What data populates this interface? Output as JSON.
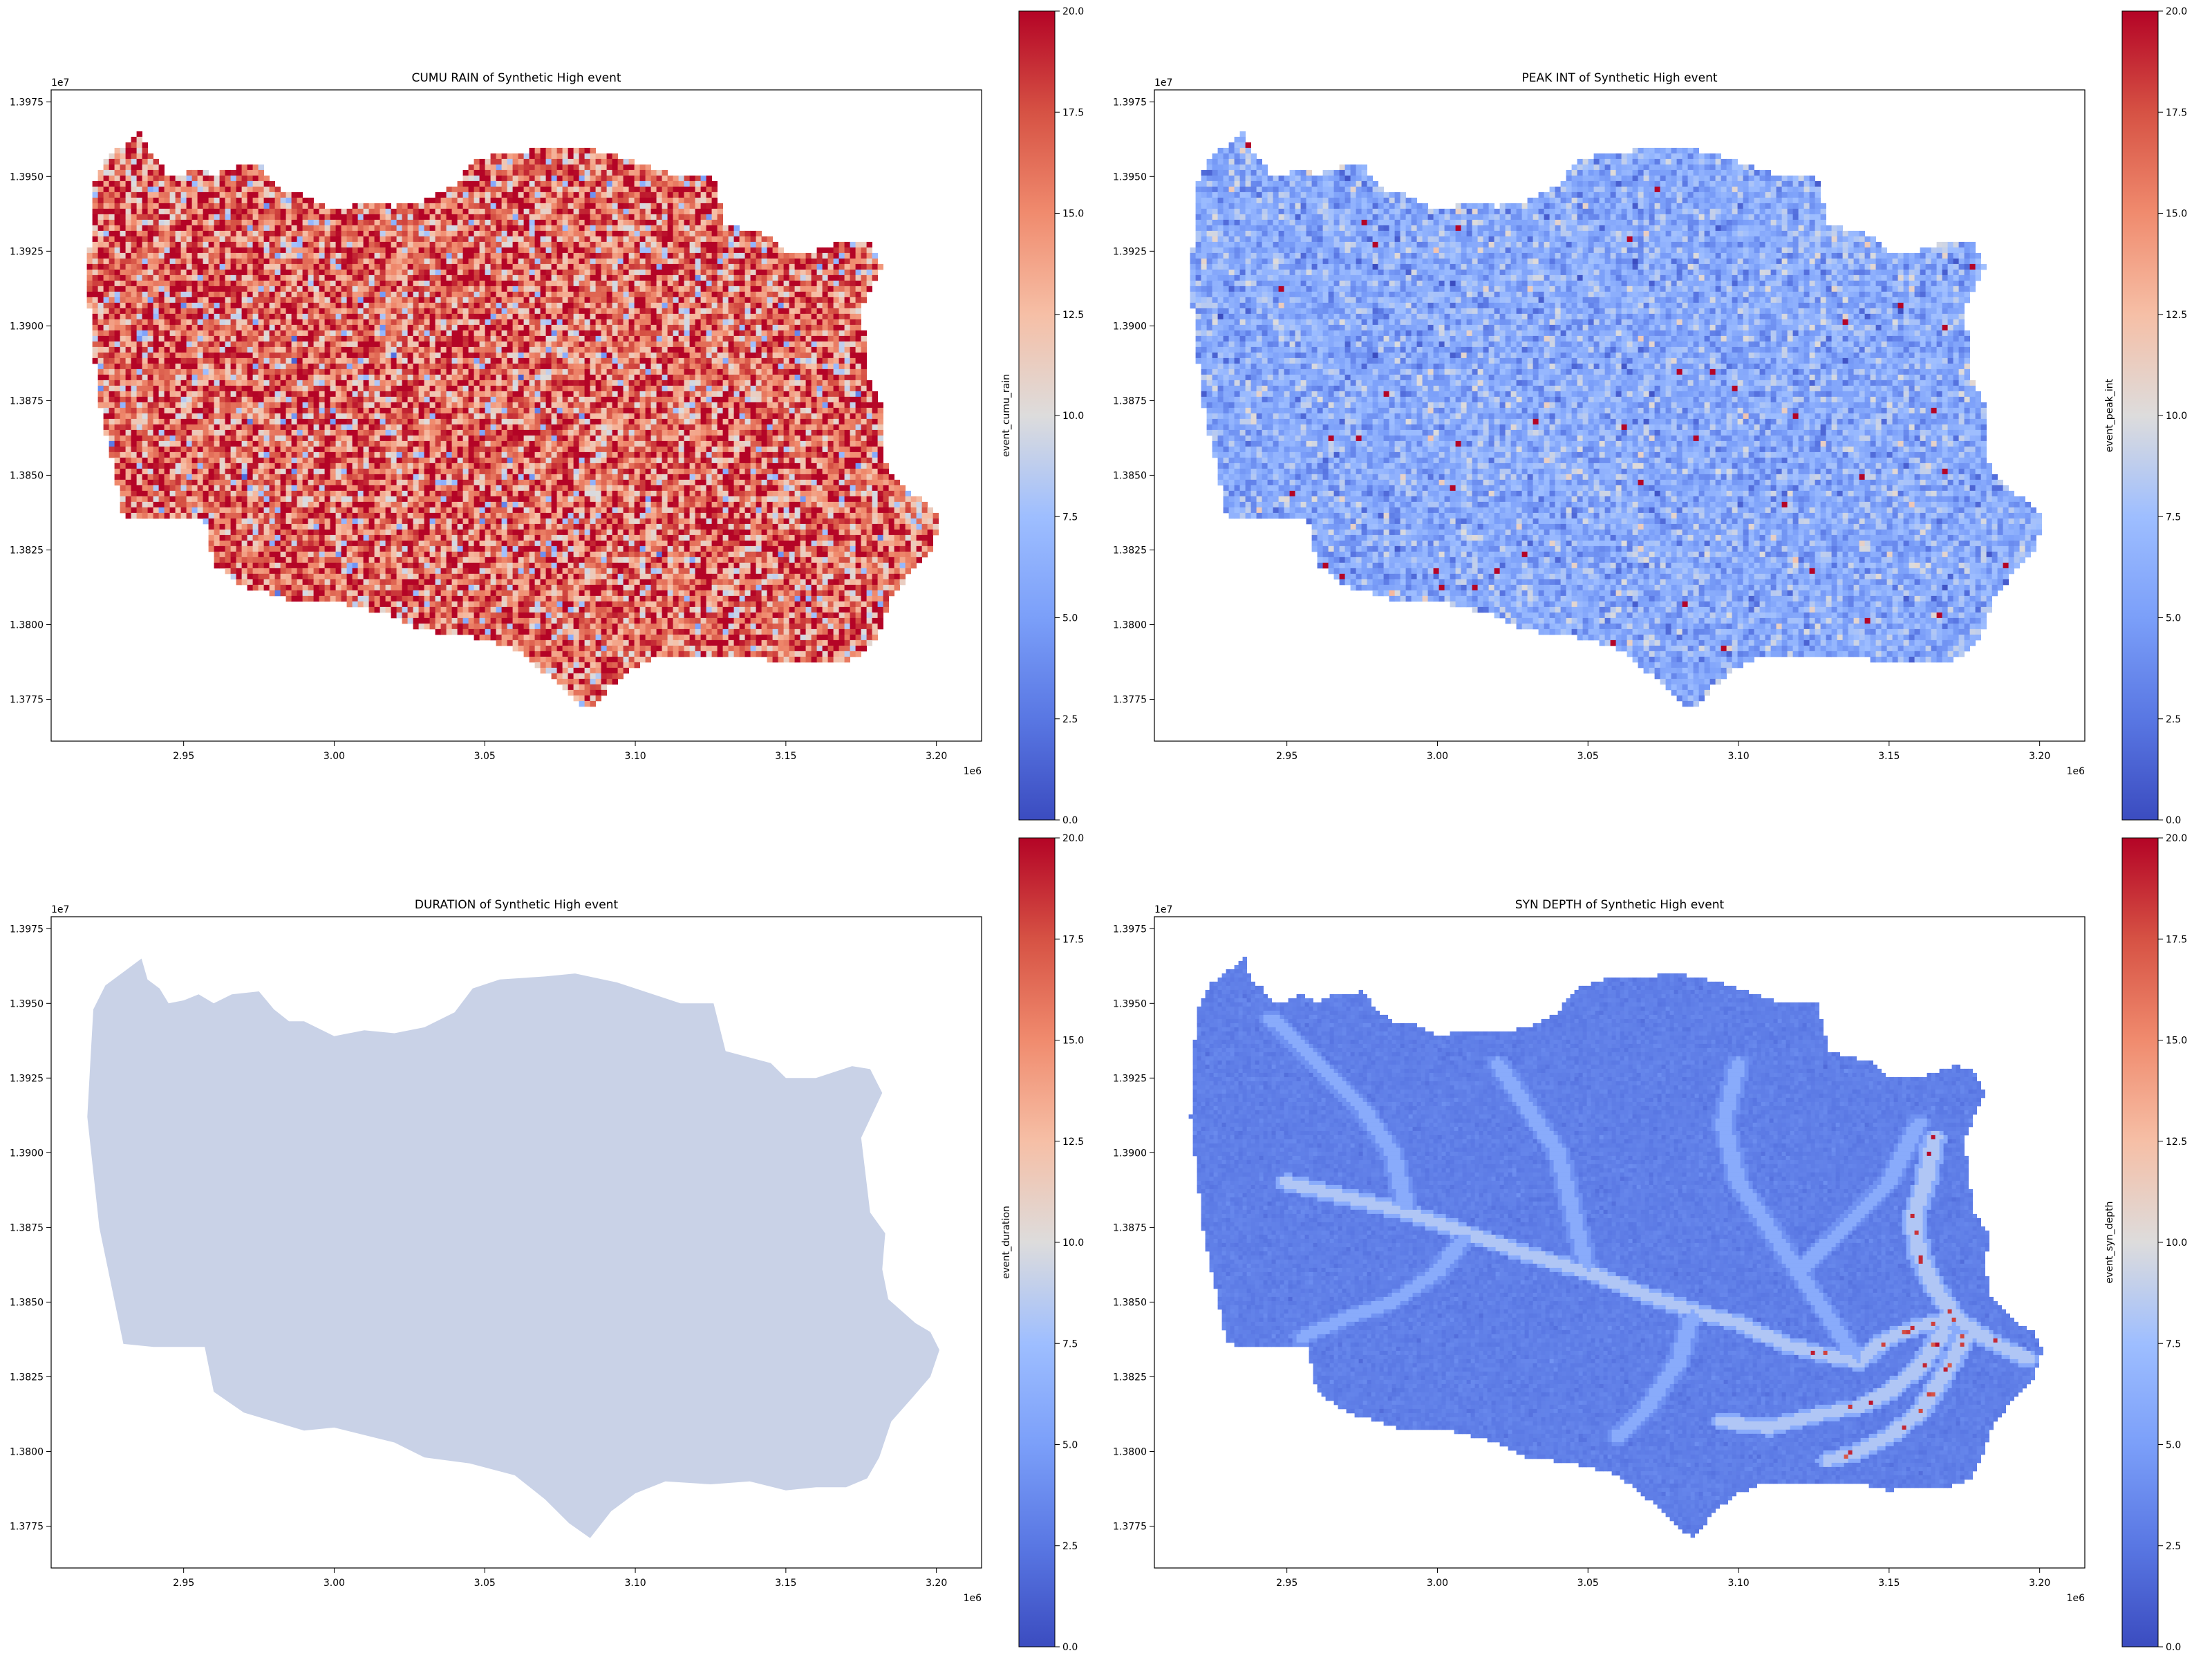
{
  "figure": {
    "background": "#ffffff"
  },
  "colorbar": {
    "ticks": [
      "0.0",
      "2.5",
      "5.0",
      "7.5",
      "10.0",
      "12.5",
      "15.0",
      "17.5",
      "20.0"
    ],
    "vmin": 0,
    "vmax": 20,
    "colormap": "coolwarm"
  },
  "chart_data": [
    {
      "type": "heatmap",
      "title": "CUMU RAIN of Synthetic High event",
      "colorbar_label": "event_cumu_rain",
      "x_offset_label": "1e6",
      "y_offset_label": "1e7",
      "xticks": [
        "2.95",
        "3.00",
        "3.05",
        "3.10",
        "3.15",
        "3.20"
      ],
      "yticks": [
        "1.3775",
        "1.3800",
        "1.3825",
        "1.3850",
        "1.3875",
        "1.3900",
        "1.3925",
        "1.3950",
        "1.3975"
      ],
      "xlim": [
        2.906,
        3.215
      ],
      "ylim": [
        1.3761,
        1.3979
      ],
      "color_range": [
        0,
        20
      ],
      "field": "noise",
      "mean": 16.2,
      "spread": 4.2
    },
    {
      "type": "heatmap",
      "title": "PEAK INT of Synthetic High event",
      "colorbar_label": "event_peak_int",
      "x_offset_label": "1e6",
      "y_offset_label": "1e7",
      "xticks": [
        "2.95",
        "3.00",
        "3.05",
        "3.10",
        "3.15",
        "3.20"
      ],
      "yticks": [
        "1.3775",
        "1.3800",
        "1.3825",
        "1.3850",
        "1.3875",
        "1.3900",
        "1.3925",
        "1.3950",
        "1.3975"
      ],
      "xlim": [
        2.906,
        3.215
      ],
      "ylim": [
        1.3761,
        1.3979
      ],
      "color_range": [
        0,
        20
      ],
      "field": "noise",
      "mean": 6.0,
      "spread": 1.8
    },
    {
      "type": "heatmap",
      "title": "DURATION of Synthetic High event",
      "colorbar_label": "event_duration",
      "x_offset_label": "1e6",
      "y_offset_label": "1e7",
      "xticks": [
        "2.95",
        "3.00",
        "3.05",
        "3.10",
        "3.15",
        "3.20"
      ],
      "yticks": [
        "1.3775",
        "1.3800",
        "1.3825",
        "1.3850",
        "1.3875",
        "1.3900",
        "1.3925",
        "1.3950",
        "1.3975"
      ],
      "xlim": [
        2.906,
        3.215
      ],
      "ylim": [
        1.3761,
        1.3979
      ],
      "color_range": [
        0,
        20
      ],
      "field": "uniform",
      "mean": 9.2,
      "spread": 0
    },
    {
      "type": "heatmap",
      "title": "SYN DEPTH of Synthetic High event",
      "colorbar_label": "event_syn_depth",
      "x_offset_label": "1e6",
      "y_offset_label": "1e7",
      "xticks": [
        "2.95",
        "3.00",
        "3.05",
        "3.10",
        "3.15",
        "3.20"
      ],
      "yticks": [
        "1.3775",
        "1.3800",
        "1.3825",
        "1.3850",
        "1.3875",
        "1.3900",
        "1.3925",
        "1.3950",
        "1.3975"
      ],
      "xlim": [
        2.906,
        3.215
      ],
      "ylim": [
        1.3761,
        1.3979
      ],
      "color_range": [
        0,
        20
      ],
      "field": "rivers",
      "mean": 3.0,
      "spread": 0.3
    }
  ]
}
